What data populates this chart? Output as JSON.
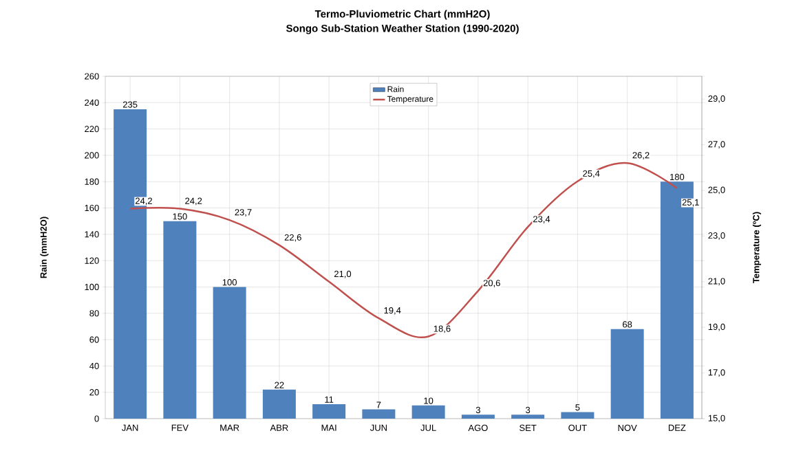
{
  "chart_data": {
    "type": "bar",
    "title": "Termo-Pluviometric Chart (mmH2O)",
    "subtitle": "Songo Sub-Station Weather Station (1990-2020)",
    "ylabel": "Rain (mmH2O)",
    "y2label": "Temperature (ºC)",
    "categories": [
      "JAN",
      "FEV",
      "MAR",
      "ABR",
      "MAI",
      "JUN",
      "JUL",
      "AGO",
      "SET",
      "OUT",
      "NOV",
      "DEZ"
    ],
    "series": [
      {
        "name": "Rain",
        "color": "#4f81bd",
        "values": [
          235,
          150,
          100,
          22,
          11,
          7,
          10,
          3,
          3,
          5,
          68,
          180
        ],
        "value_labels": [
          "235",
          "150",
          "100",
          "22",
          "11",
          "7",
          "10",
          "3",
          "3",
          "5",
          "68",
          "180"
        ]
      },
      {
        "name": "Temperature",
        "type": "line",
        "axis": "y2",
        "color": "#c0504d",
        "values": [
          24.2,
          24.2,
          23.7,
          22.6,
          21.0,
          19.4,
          18.6,
          20.6,
          23.4,
          25.4,
          26.2,
          25.1
        ],
        "value_labels": [
          "24,2",
          "24,2",
          "23,7",
          "22,6",
          "21,0",
          "19,4",
          "18,6",
          "20,6",
          "23,4",
          "25,4",
          "26,2",
          "25,1"
        ]
      }
    ],
    "ylim": [
      0,
      260
    ],
    "yticks": [
      0,
      20,
      40,
      60,
      80,
      100,
      120,
      140,
      160,
      180,
      200,
      220,
      240,
      260
    ],
    "y2lim": [
      15,
      30
    ],
    "y2ticks": [
      {
        "value": 15,
        "label": "15,0"
      },
      {
        "value": 17,
        "label": "17,0"
      },
      {
        "value": 19,
        "label": "19,0"
      },
      {
        "value": 21,
        "label": "21,0"
      },
      {
        "value": 23,
        "label": "23,0"
      },
      {
        "value": 25,
        "label": "25,0"
      },
      {
        "value": 27,
        "label": "27,0"
      },
      {
        "value": 29,
        "label": "29,0"
      }
    ],
    "grid": true,
    "legend": "top"
  }
}
